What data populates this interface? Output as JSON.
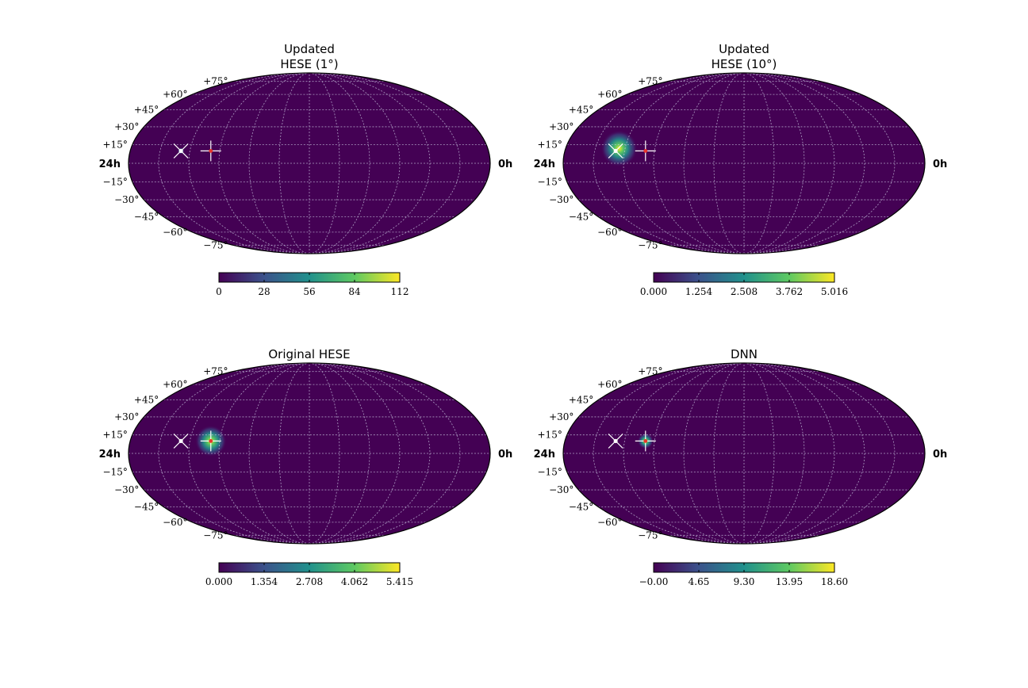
{
  "figure": {
    "colormap": [
      "#440154",
      "#3b528b",
      "#21918c",
      "#5ec962",
      "#fde725"
    ],
    "background_value_color": "#440154",
    "grid_color": "#cfcfe6",
    "outline_color": "#000000",
    "marker_color": "#ffffff",
    "marker_center_color": "#e8352b"
  },
  "chart_data": [
    {
      "type": "heatmap",
      "projection": "mollweide",
      "title_lines": [
        "Updated",
        "HESE (1°)"
      ],
      "ra_left_label": "24h",
      "ra_right_label": "0h",
      "lat_labels": [
        "+75°",
        "+60°",
        "+45°",
        "+30°",
        "+15°",
        "−15°",
        "−30°",
        "−45°",
        "−60°",
        "−75°"
      ],
      "colorbar_ticks": [
        "0",
        "28",
        "56",
        "84",
        "112"
      ],
      "colorbar_range": [
        0,
        112
      ],
      "hotspot": {
        "ra_hours": 20.6,
        "dec_deg": 10,
        "sigma_deg": 1.2,
        "peak": 112
      },
      "markers": [
        {
          "shape": "x",
          "ra_hours": 20.6,
          "dec_deg": 10
        },
        {
          "shape": "plus",
          "ra_hours": 18.6,
          "dec_deg": 10
        }
      ],
      "grid": true
    },
    {
      "type": "heatmap",
      "projection": "mollweide",
      "title_lines": [
        "Updated",
        "HESE (10°)"
      ],
      "ra_left_label": "24h",
      "ra_right_label": "0h",
      "lat_labels": [
        "+75°",
        "+60°",
        "+45°",
        "+30°",
        "+15°",
        "−15°",
        "−30°",
        "−45°",
        "−60°",
        "−75°"
      ],
      "colorbar_ticks": [
        "0.000",
        "1.254",
        "2.508",
        "3.762",
        "5.016"
      ],
      "colorbar_range": [
        0,
        5.016
      ],
      "hotspot": {
        "ra_hours": 20.4,
        "dec_deg": 12,
        "sigma_deg": 7,
        "peak": 5.016
      },
      "markers": [
        {
          "shape": "x",
          "ra_hours": 20.6,
          "dec_deg": 10
        },
        {
          "shape": "plus",
          "ra_hours": 18.6,
          "dec_deg": 10
        }
      ],
      "grid": true
    },
    {
      "type": "heatmap",
      "projection": "mollweide",
      "title_lines": [
        "Original HESE"
      ],
      "ra_left_label": "24h",
      "ra_right_label": "0h",
      "lat_labels": [
        "+75°",
        "+60°",
        "+45°",
        "+30°",
        "+15°",
        "−15°",
        "−30°",
        "−45°",
        "−60°",
        "−75°"
      ],
      "colorbar_ticks": [
        "0.000",
        "1.354",
        "2.708",
        "4.062",
        "5.415"
      ],
      "colorbar_range": [
        0,
        5.415
      ],
      "hotspot": {
        "ra_hours": 18.6,
        "dec_deg": 10,
        "sigma_deg": 6,
        "peak": 5.415
      },
      "markers": [
        {
          "shape": "x",
          "ra_hours": 20.6,
          "dec_deg": 10
        },
        {
          "shape": "plus",
          "ra_hours": 18.6,
          "dec_deg": 10
        }
      ],
      "grid": true
    },
    {
      "type": "heatmap",
      "projection": "mollweide",
      "title_lines": [
        "DNN"
      ],
      "ra_left_label": "24h",
      "ra_right_label": "0h",
      "lat_labels": [
        "+75°",
        "+60°",
        "+45°",
        "+30°",
        "+15°",
        "−15°",
        "−30°",
        "−45°",
        "−60°",
        "−75°"
      ],
      "colorbar_ticks": [
        "−0.00",
        "4.65",
        "9.30",
        "13.95",
        "18.60"
      ],
      "colorbar_range": [
        0,
        18.6
      ],
      "hotspot": {
        "ra_hours": 18.6,
        "dec_deg": 10,
        "sigma_deg": 3,
        "peak": 18.6
      },
      "markers": [
        {
          "shape": "x",
          "ra_hours": 20.6,
          "dec_deg": 10
        },
        {
          "shape": "plus",
          "ra_hours": 18.6,
          "dec_deg": 10
        }
      ],
      "grid": true
    }
  ]
}
